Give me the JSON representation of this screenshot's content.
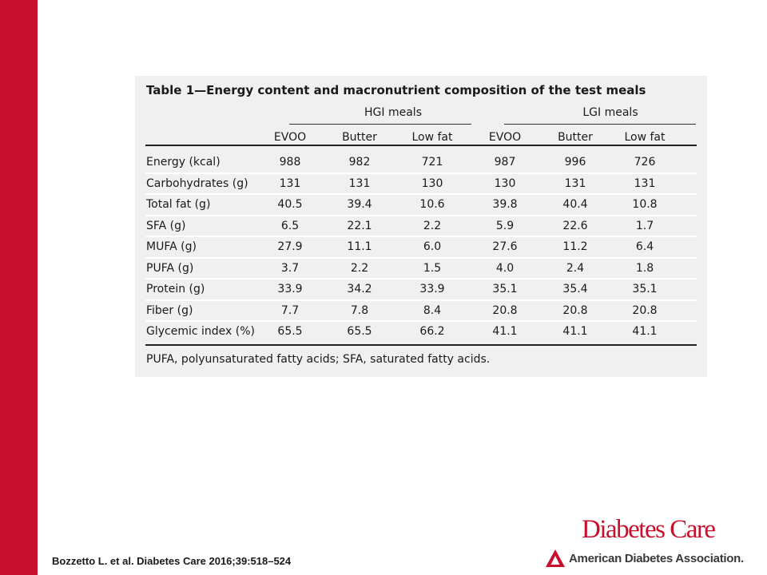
{
  "table": {
    "title": "Table 1—Energy content and macronutrient composition of the test meals",
    "groups": [
      "HGI meals",
      "LGI meals"
    ],
    "columns": [
      "EVOO",
      "Butter",
      "Low fat",
      "EVOO",
      "Butter",
      "Low fat"
    ],
    "rows": [
      {
        "label": "Energy (kcal)",
        "values": [
          "988",
          "982",
          "721",
          "987",
          "996",
          "726"
        ]
      },
      {
        "label": "Carbohydrates (g)",
        "values": [
          "131",
          "131",
          "130",
          "130",
          "131",
          "131"
        ]
      },
      {
        "label": "Total fat (g)",
        "values": [
          "40.5",
          "39.4",
          "10.6",
          "39.8",
          "40.4",
          "10.8"
        ]
      },
      {
        "label": "SFA (g)",
        "values": [
          "6.5",
          "22.1",
          "2.2",
          "5.9",
          "22.6",
          "1.7"
        ]
      },
      {
        "label": "MUFA (g)",
        "values": [
          "27.9",
          "11.1",
          "6.0",
          "27.6",
          "11.2",
          "6.4"
        ]
      },
      {
        "label": "PUFA (g)",
        "values": [
          "3.7",
          "2.2",
          "1.5",
          "4.0",
          "2.4",
          "1.8"
        ]
      },
      {
        "label": "Protein (g)",
        "values": [
          "33.9",
          "34.2",
          "33.9",
          "35.1",
          "35.4",
          "35.1"
        ]
      },
      {
        "label": "Fiber (g)",
        "values": [
          "7.7",
          "7.8",
          "8.4",
          "20.8",
          "20.8",
          "20.8"
        ]
      },
      {
        "label": "Glycemic index (%)",
        "values": [
          "65.5",
          "65.5",
          "66.2",
          "41.1",
          "41.1",
          "41.1"
        ]
      }
    ],
    "footnote": "PUFA, polyunsaturated fatty acids; SFA, saturated fatty acids."
  },
  "citation": "Bozzetto L. et al. Diabetes Care 2016;39:518–524",
  "journal_logo": "Diabetes Care",
  "association_logo": "American Diabetes Association.",
  "colors": {
    "brand_red": "#c8102e",
    "table_background": "#f0f0f0"
  }
}
